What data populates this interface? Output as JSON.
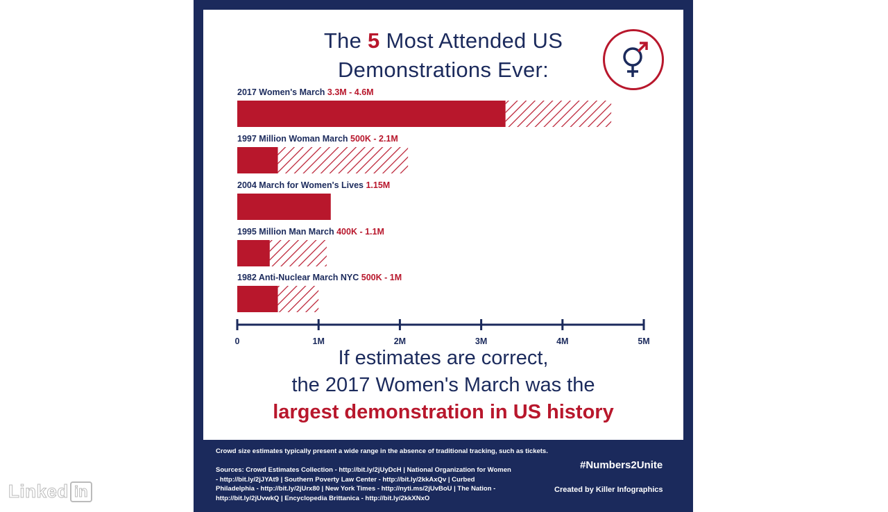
{
  "title": {
    "pre": "The ",
    "num": "5",
    "post": " Most Attended US",
    "line2": "Demonstrations Ever:"
  },
  "icon": "gender-symbol-icon",
  "colors": {
    "navy": "#1b2a5c",
    "red": "#b8172c",
    "white": "#ffffff"
  },
  "chart_data": {
    "type": "bar",
    "orientation": "horizontal",
    "xlim": [
      0,
      5
    ],
    "x_unit": "M",
    "ticks": [
      "0",
      "1M",
      "2M",
      "3M",
      "4M",
      "5M"
    ],
    "bars": [
      {
        "name": "2017 Women's March",
        "range_label": "3.3M - 4.6M",
        "low": 3.3,
        "high": 4.6
      },
      {
        "name": "1997 Million Woman March",
        "range_label": "500K - 2.1M",
        "low": 0.5,
        "high": 2.1
      },
      {
        "name": "2004 March for Women's Lives",
        "range_label": "1.15M",
        "low": 1.15,
        "high": 1.15
      },
      {
        "name": "1995 Million Man March",
        "range_label": "400K - 1.1M",
        "low": 0.4,
        "high": 1.1
      },
      {
        "name": "1982 Anti-Nuclear March NYC",
        "range_label": "500K - 1M",
        "low": 0.5,
        "high": 1.0
      }
    ]
  },
  "conclusion": {
    "line1": "If estimates are correct,",
    "line2": "the 2017 Women's March was the",
    "line3": "largest demonstration in US history"
  },
  "footer": {
    "note": "Crowd size estimates typically present a wide range in the absence of traditional tracking, such as tickets.",
    "sources": [
      "Sources: Crowd Estimates Collection - http://bit.ly/2jUyDcH | National Organization for Women",
      "- http://bit.ly/2jJYAt9 | Southern Poverty Law Center - http://bit.ly/2kkAxQv | Curbed",
      "Philadelphia - http://bit.ly/2jUrx80 | New York Times - http://nyti.ms/2jUvBoU | The Nation -",
      "http://bit.ly/2jUvwkQ | Encyclopedia Brittanica - http://bit.ly/2kkXNxO"
    ],
    "hashtag": "#Numbers2Unite",
    "credit": "Created by Killer Infographics"
  },
  "watermark": {
    "text": "Linked",
    "box": "in"
  }
}
